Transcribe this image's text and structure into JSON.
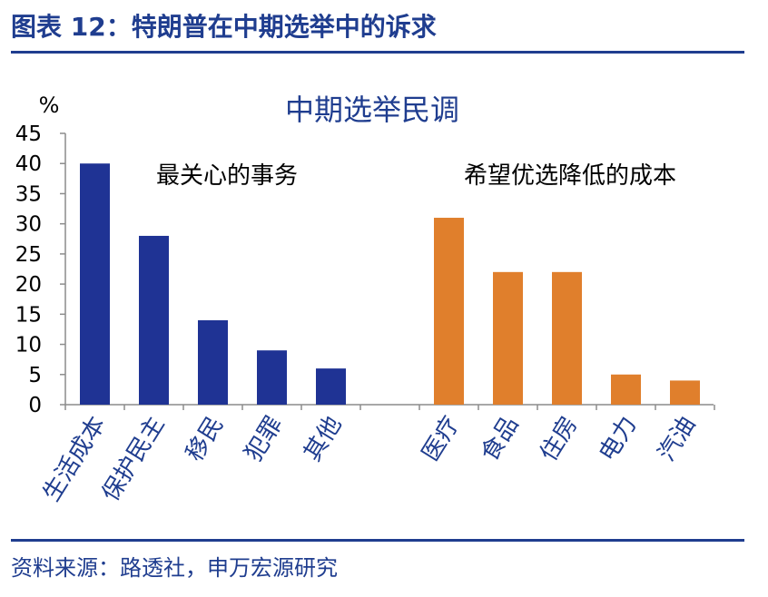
{
  "figure_title": "图表 12：特朗普在中期选举中的诉求",
  "source": "资料来源：路透社，申万宏源研究",
  "chart_data": {
    "type": "bar",
    "title": "中期选举民调",
    "ylabel": "%",
    "ylim": [
      0,
      45
    ],
    "yticks": [
      0,
      5,
      10,
      15,
      20,
      25,
      30,
      35,
      40,
      45
    ],
    "grid": false,
    "groups": [
      {
        "name": "最关心的事务",
        "color": "#1f3394",
        "categories": [
          "生活成本",
          "保护民主",
          "移民",
          "犯罪",
          "其他"
        ],
        "values": [
          40,
          28,
          14,
          9,
          6
        ]
      },
      {
        "name": "希望优选降低的成本",
        "color": "#e07f2c",
        "categories": [
          "医疗",
          "食品",
          "住房",
          "电力",
          "汽油"
        ],
        "values": [
          31,
          22,
          22,
          5,
          4
        ]
      }
    ]
  }
}
